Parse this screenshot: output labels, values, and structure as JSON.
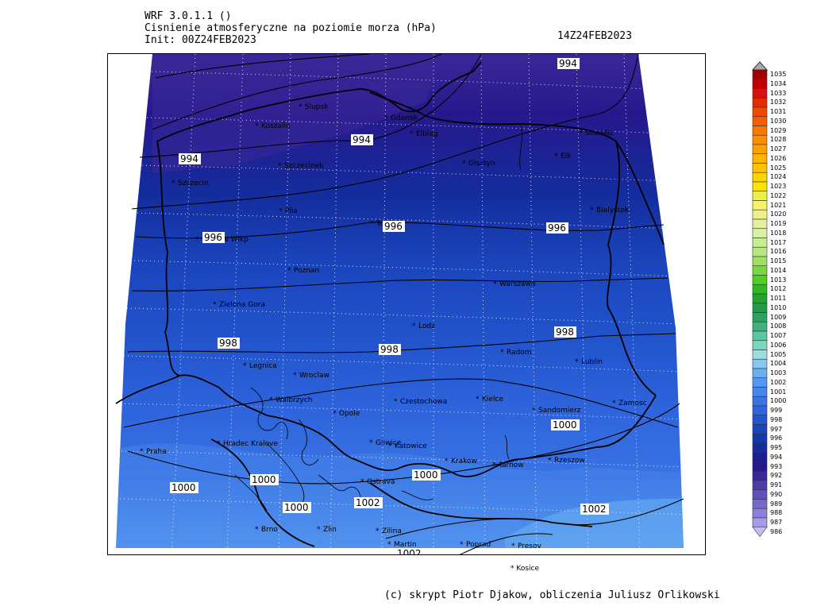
{
  "header": {
    "model": "WRF 3.0.1.1 ()",
    "title": "Cisnienie atmosferyczne na poziomie morza (hPa)",
    "init": "Init: 00Z24FEB2023",
    "valid": "14Z24FEB2023"
  },
  "footer": "(c) skrypt Piotr Djakow, obliczenia Juliusz Orlikowski",
  "cities": [
    {
      "name": "Slupsk"
    },
    {
      "name": "Koszalin"
    },
    {
      "name": "Gdansk"
    },
    {
      "name": "Elblag"
    },
    {
      "name": "Suwalki"
    },
    {
      "name": "Szczecinek"
    },
    {
      "name": "Olsztyn"
    },
    {
      "name": "Elk"
    },
    {
      "name": "Szczecin"
    },
    {
      "name": "Pila"
    },
    {
      "name": "Bialystok"
    },
    {
      "name": "Torun"
    },
    {
      "name": "Gorzow Wlkp"
    },
    {
      "name": "Poznan"
    },
    {
      "name": "Warszawa"
    },
    {
      "name": "Zielona Gora"
    },
    {
      "name": "Lodz"
    },
    {
      "name": "Radom"
    },
    {
      "name": "Lublin"
    },
    {
      "name": "Legnica"
    },
    {
      "name": "Wroclaw"
    },
    {
      "name": "Walbrzych"
    },
    {
      "name": "Opole"
    },
    {
      "name": "Czestochowa"
    },
    {
      "name": "Kielce"
    },
    {
      "name": "Sandomierz"
    },
    {
      "name": "Zamosc"
    },
    {
      "name": "Praha"
    },
    {
      "name": "Hradec Kralove"
    },
    {
      "name": "Gliwice"
    },
    {
      "name": "Katowice"
    },
    {
      "name": "Krakow"
    },
    {
      "name": "Tarnow"
    },
    {
      "name": "Rzeszow"
    },
    {
      "name": "Ostrava"
    },
    {
      "name": "Brno"
    },
    {
      "name": "Zlin"
    },
    {
      "name": "Zilina"
    },
    {
      "name": "Martin"
    },
    {
      "name": "Poprad"
    },
    {
      "name": "Presov"
    },
    {
      "name": "Trencin"
    }
  ],
  "outside_city": "Kosice",
  "isobar_labels": [
    {
      "value": "994"
    },
    {
      "value": "994"
    },
    {
      "value": "994"
    },
    {
      "value": "996"
    },
    {
      "value": "996"
    },
    {
      "value": "996"
    },
    {
      "value": "998"
    },
    {
      "value": "998"
    },
    {
      "value": "998"
    },
    {
      "value": "1000"
    },
    {
      "value": "1000"
    },
    {
      "value": "1000"
    },
    {
      "value": "1000"
    },
    {
      "value": "1000"
    },
    {
      "value": "1002"
    },
    {
      "value": "1002"
    },
    {
      "value": "1002"
    }
  ],
  "legend": {
    "levels": [
      "1035",
      "1034",
      "1033",
      "1032",
      "1031",
      "1030",
      "1029",
      "1028",
      "1027",
      "1026",
      "1025",
      "1024",
      "1023",
      "1022",
      "1021",
      "1020",
      "1019",
      "1018",
      "1017",
      "1016",
      "1015",
      "1014",
      "1013",
      "1012",
      "1011",
      "1010",
      "1009",
      "1008",
      "1007",
      "1006",
      "1005",
      "1004",
      "1003",
      "1002",
      "1001",
      "1000",
      "999",
      "998",
      "997",
      "996",
      "995",
      "994",
      "993",
      "992",
      "991",
      "990",
      "989",
      "988",
      "987",
      "986"
    ],
    "colors": [
      "#a00000",
      "#c00000",
      "#d81010",
      "#e82a00",
      "#f04800",
      "#f85c00",
      "#fa7800",
      "#fc8c00",
      "#fca000",
      "#fcb400",
      "#fcc400",
      "#fcd400",
      "#fce400",
      "#f0f040",
      "#f4f464",
      "#f0f088",
      "#e4f0a0",
      "#d8f0a8",
      "#c8ec94",
      "#b8e680",
      "#a0e060",
      "#78d840",
      "#50d020",
      "#30b820",
      "#28a030",
      "#289848",
      "#30a060",
      "#40b080",
      "#58c8a0",
      "#78d8c0",
      "#98e0e0",
      "#88c8f0",
      "#6ab0f0",
      "#5498f0",
      "#4886ec",
      "#3a74e4",
      "#2e64dc",
      "#2254cc",
      "#1a44bc",
      "#1438ac",
      "#142c9c",
      "#1a208c",
      "#26188c",
      "#3a2898",
      "#4c3ca8",
      "#6050bc",
      "#7468cc",
      "#8a80dc",
      "#a49ce8",
      "#c4beee"
    ]
  }
}
